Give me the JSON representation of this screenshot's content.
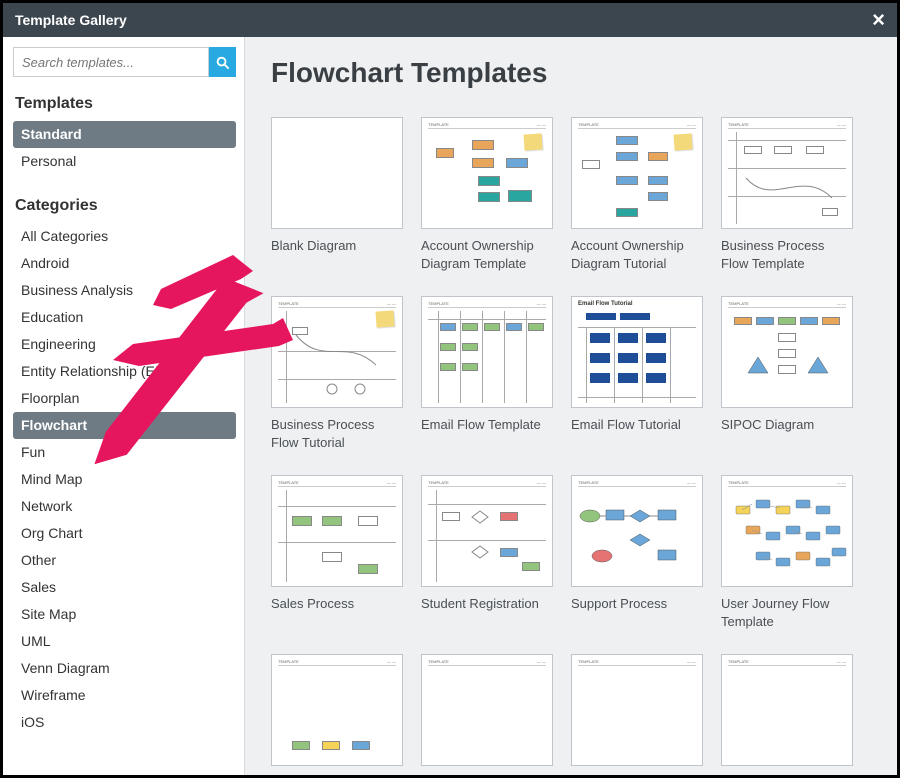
{
  "window": {
    "title": "Template Gallery"
  },
  "search": {
    "placeholder": "Search templates..."
  },
  "sidebar": {
    "templates_heading": "Templates",
    "template_groups": [
      {
        "label": "Standard",
        "selected": true
      },
      {
        "label": "Personal",
        "selected": false
      }
    ],
    "categories_heading": "Categories",
    "categories": [
      {
        "label": "All Categories"
      },
      {
        "label": "Android"
      },
      {
        "label": "Business Analysis"
      },
      {
        "label": "Education"
      },
      {
        "label": "Engineering"
      },
      {
        "label": "Entity Relationship (ERD)"
      },
      {
        "label": "Floorplan"
      },
      {
        "label": "Flowchart",
        "selected": true
      },
      {
        "label": "Fun"
      },
      {
        "label": "Mind Map"
      },
      {
        "label": "Network"
      },
      {
        "label": "Org Chart"
      },
      {
        "label": "Other"
      },
      {
        "label": "Sales"
      },
      {
        "label": "Site Map"
      },
      {
        "label": "UML"
      },
      {
        "label": "Venn Diagram"
      },
      {
        "label": "Wireframe"
      },
      {
        "label": "iOS"
      }
    ]
  },
  "main": {
    "heading": "Flowchart Templates",
    "templates": [
      {
        "label": "Blank Diagram",
        "thumb": "blank"
      },
      {
        "label": "Account Ownership Diagram Template",
        "thumb": "acct_template"
      },
      {
        "label": "Account Ownership Diagram Tutorial",
        "thumb": "acct_tutorial"
      },
      {
        "label": "Business Process Flow Template",
        "thumb": "bpf_template"
      },
      {
        "label": "Business Process Flow Tutorial",
        "thumb": "bpf_tutorial"
      },
      {
        "label": "Email Flow Template",
        "thumb": "email_template"
      },
      {
        "label": "Email Flow Tutorial",
        "thumb": "email_tutorial"
      },
      {
        "label": "SIPOC Diagram",
        "thumb": "sipoc"
      },
      {
        "label": "Sales Process",
        "thumb": "sales"
      },
      {
        "label": "Student Registration",
        "thumb": "student"
      },
      {
        "label": "Support Process",
        "thumb": "support"
      },
      {
        "label": "User Journey Flow Template",
        "thumb": "journey"
      },
      {
        "label": "",
        "thumb": "partial1"
      },
      {
        "label": "",
        "thumb": "partial2"
      },
      {
        "label": "",
        "thumb": "partial3"
      },
      {
        "label": "",
        "thumb": "partial4"
      }
    ]
  },
  "colors": {
    "titlebar_bg": "#3c464e",
    "accent_search": "#29a9e1",
    "selected_bg": "#6e7b84",
    "panel_bg": "#eef0f2",
    "arrow_fill": "#e6165e",
    "sticky": "#f4d97a",
    "teal": "#2aa6a0",
    "blue": "#6aa6d8",
    "orange": "#e7a65a",
    "green": "#93c47d",
    "darkblue": "#1f4e98",
    "red": "#e57373",
    "yellow": "#f4d358"
  },
  "arrows": [
    {
      "from": [
        230,
        286
      ],
      "to": [
        88,
        462
      ]
    },
    {
      "from": [
        275,
        330
      ],
      "to": [
        113,
        342
      ]
    },
    {
      "from": [
        218,
        260
      ],
      "to": [
        155,
        296
      ]
    }
  ]
}
